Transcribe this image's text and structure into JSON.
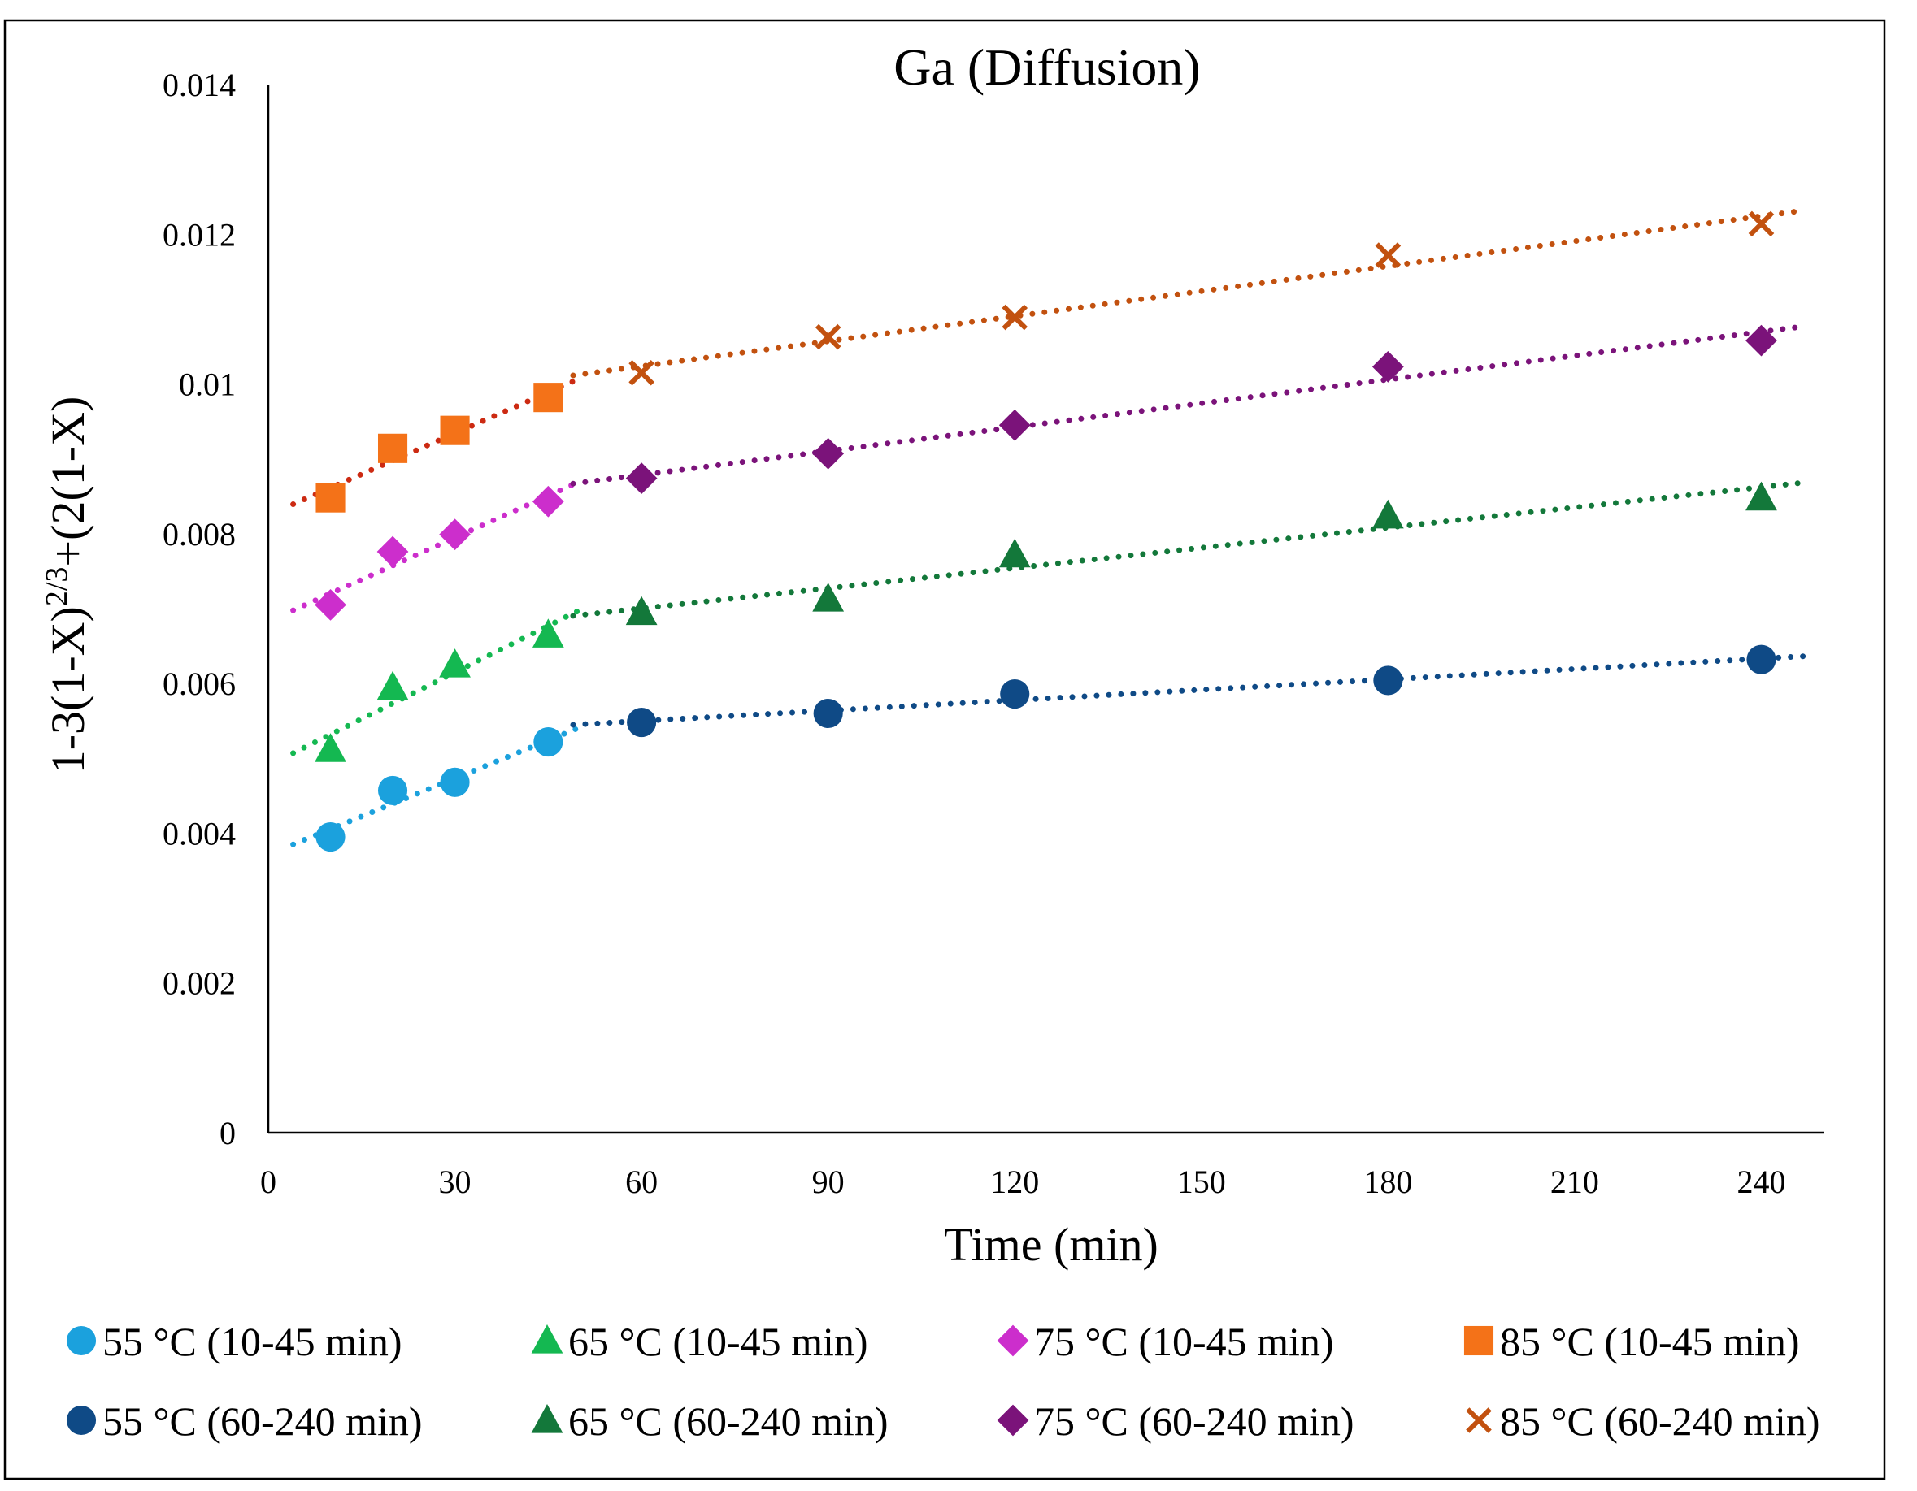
{
  "chart_data": {
    "type": "scatter",
    "title": "Ga (Diffusion)",
    "xlabel": "Time (min)",
    "ylabel_parts": {
      "base": "1-3(1-X)",
      "sup": "2/3",
      "tail": "+(2(1-X)"
    },
    "xlim": [
      0,
      250
    ],
    "ylim": [
      0,
      0.014
    ],
    "x_ticks": [
      0,
      30,
      60,
      90,
      120,
      150,
      180,
      210,
      240
    ],
    "x_tick_labels": [
      "0",
      "30",
      "60",
      "90",
      "120",
      "150",
      "180",
      "210",
      "240"
    ],
    "y_ticks": [
      0,
      0.002,
      0.004,
      0.006,
      0.008,
      0.01,
      0.012,
      0.014
    ],
    "y_tick_labels": [
      "0",
      "0.002",
      "0.004",
      "0.006",
      "0.008",
      "0.01",
      "0.012",
      "0.014"
    ],
    "grid": false,
    "legend_position": "bottom",
    "trendline_style": "dotted linear fit",
    "series": [
      {
        "name": "55 °C (10-45 min)",
        "marker": "circle",
        "color": "#1ba1dd",
        "trend_color": "#1ba1dd",
        "x": [
          10,
          20,
          30,
          45
        ],
        "y": [
          0.00395,
          0.00457,
          0.00468,
          0.00522
        ],
        "trend_x": [
          4,
          50
        ]
      },
      {
        "name": "65 °C (10-45 min)",
        "marker": "triangle",
        "color": "#14b851",
        "trend_color": "#14b851",
        "x": [
          10,
          20,
          30,
          45
        ],
        "y": [
          0.00512,
          0.00595,
          0.00625,
          0.00665
        ],
        "trend_x": [
          4,
          50
        ]
      },
      {
        "name": "75 °C (10-45 min)",
        "marker": "diamond",
        "color": "#cc2ecc",
        "trend_color": "#cc2ecc",
        "x": [
          10,
          20,
          30,
          45
        ],
        "y": [
          0.00705,
          0.00776,
          0.00799,
          0.00843
        ],
        "trend_x": [
          4,
          50
        ]
      },
      {
        "name": "85 °C (10-45 min)",
        "marker": "square",
        "color": "#f47218",
        "trend_color": "#cc2a12",
        "x": [
          10,
          20,
          30,
          45
        ],
        "y": [
          0.00848,
          0.00914,
          0.00938,
          0.00982
        ],
        "trend_x": [
          4,
          50
        ]
      },
      {
        "name": "55 °C (60-240 min)",
        "marker": "circle",
        "color": "#0f4a86",
        "trend_color": "#0f4a86",
        "x": [
          60,
          90,
          120,
          180,
          240
        ],
        "y": [
          0.00548,
          0.0056,
          0.00586,
          0.00604,
          0.00632
        ],
        "trend_x": [
          49,
          247
        ]
      },
      {
        "name": "65 °C (60-240 min)",
        "marker": "triangle",
        "color": "#13783a",
        "trend_color": "#13783a",
        "x": [
          60,
          90,
          120,
          180,
          240
        ],
        "y": [
          0.00695,
          0.00713,
          0.00772,
          0.00824,
          0.00848
        ],
        "trend_x": [
          49,
          247
        ]
      },
      {
        "name": "75 °C (60-240 min)",
        "marker": "diamond",
        "color": "#7b137a",
        "trend_color": "#7b137a",
        "x": [
          60,
          90,
          120,
          180,
          240
        ],
        "y": [
          0.00874,
          0.00907,
          0.00945,
          0.01023,
          0.01058
        ],
        "trend_x": [
          49,
          247
        ]
      },
      {
        "name": "85 °C (60-240 min)",
        "marker": "cross",
        "color": "#c2510f",
        "trend_color": "#c2510f",
        "x": [
          60,
          90,
          120,
          180,
          240
        ],
        "y": [
          0.01015,
          0.01063,
          0.01089,
          0.01172,
          0.01214
        ],
        "trend_x": [
          49,
          247
        ]
      }
    ]
  }
}
